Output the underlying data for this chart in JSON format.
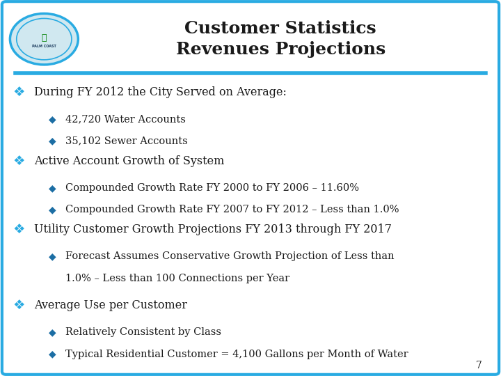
{
  "title_line1": "Customer Statistics",
  "title_line2": "Revenues Projections",
  "border_color": "#29ABE2",
  "title_color": "#1a1a1a",
  "background_color": "#FFFFFF",
  "bullet_main_color": "#29ABE2",
  "bullet_sub_color": "#1C6EA4",
  "text_color": "#1a1a1a",
  "page_number": "7",
  "sections": [
    {
      "main": "During FY 2012 the City Served on Average:",
      "subs": [
        "42,720 Water Accounts",
        "35,102 Sewer Accounts"
      ]
    },
    {
      "main": "Active Account Growth of System",
      "subs": [
        "Compounded Growth Rate FY 2000 to FY 2006 – 11.60%",
        "Compounded Growth Rate FY 2007 to FY 2012 – Less than 1.0%"
      ]
    },
    {
      "main": "Utility Customer Growth Projections FY 2013 through FY 2017",
      "subs": [
        "Forecast Assumes Conservative Growth Projection of Less than",
        "1.0% – Less than 100 Connections per Year"
      ]
    },
    {
      "main": "Average Use per Customer",
      "subs": [
        "Relatively Consistent by Class",
        "Typical Residential Customer = 4,100 Gallons per Month of Water"
      ]
    }
  ],
  "section3_single_bullet": true
}
